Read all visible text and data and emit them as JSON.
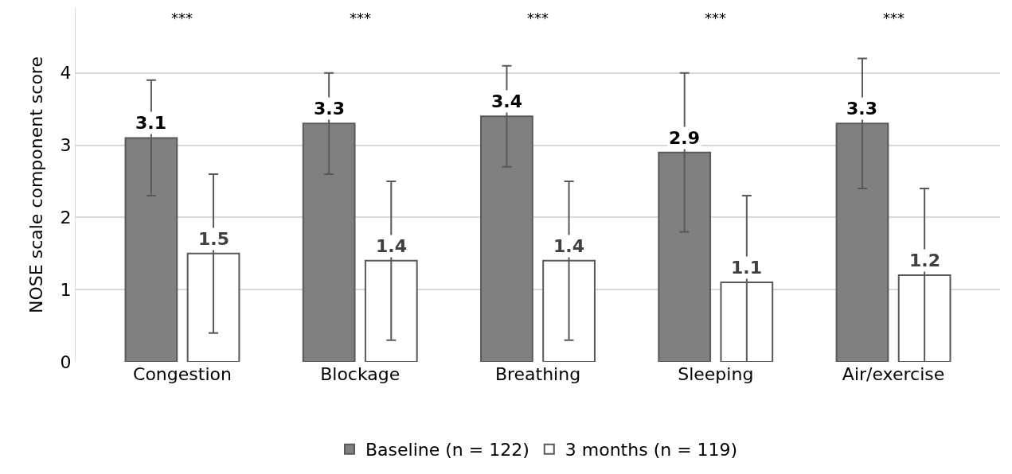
{
  "chart_data": {
    "type": "bar",
    "ylabel": "NOSE scale component score",
    "categories": [
      "Congestion",
      "Blockage",
      "Breathing",
      "Sleeping",
      "Air/exercise"
    ],
    "series": [
      {
        "name": "Baseline (n = 122)",
        "color": "#808080",
        "values": [
          3.1,
          3.3,
          3.4,
          2.9,
          3.3
        ],
        "errors": [
          [
            2.3,
            3.9
          ],
          [
            2.6,
            4.0
          ],
          [
            2.7,
            4.1
          ],
          [
            1.8,
            4.0
          ],
          [
            2.4,
            4.2
          ]
        ]
      },
      {
        "name": "3 months (n = 119)",
        "color": "#ffffff",
        "values": [
          1.5,
          1.4,
          1.4,
          1.1,
          1.2
        ],
        "errors": [
          [
            0.4,
            2.6
          ],
          [
            0.3,
            2.5
          ],
          [
            0.3,
            2.5
          ],
          [
            0,
            2.3
          ],
          [
            0,
            2.4
          ]
        ]
      }
    ],
    "ylim": [
      0,
      4.9
    ],
    "yticks": [
      0,
      1,
      2,
      3,
      4
    ],
    "grid": "y",
    "legend": "bottom",
    "data_labels": true,
    "annotations": [
      "***",
      "***",
      "***",
      "***",
      "***"
    ]
  }
}
